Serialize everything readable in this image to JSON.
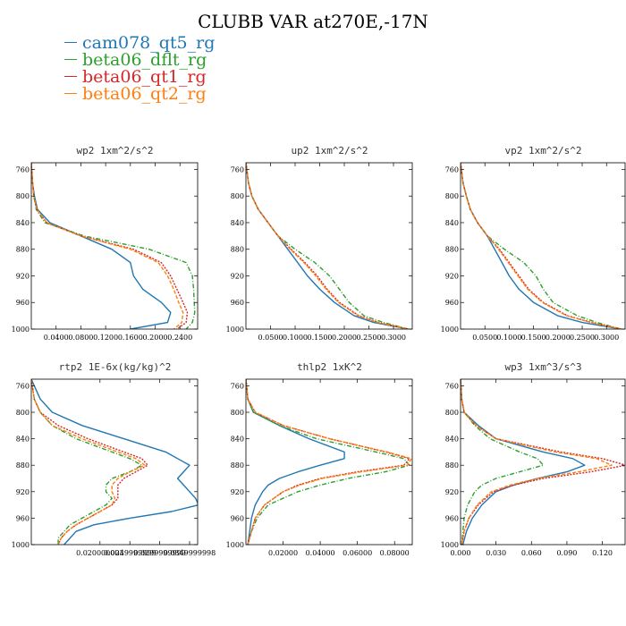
{
  "title": "CLUBB VAR at270E,-17N",
  "legend": [
    {
      "name": "cam078_qt5_rg",
      "color": "#1f77b4",
      "dash": ""
    },
    {
      "name": "beta06_dflt_rg",
      "color": "#2ca02c",
      "dash": "5,2,1,2"
    },
    {
      "name": "beta06_qt1_rg",
      "color": "#d62728",
      "dash": "2,1.5"
    },
    {
      "name": "beta06_qt2_rg",
      "color": "#ff7f0e",
      "dash": "4,2"
    }
  ],
  "chart_data": [
    {
      "type": "line",
      "title": "wp2  1xm^2/s^2",
      "ylim": [
        1000,
        750
      ],
      "yticks": [
        760,
        800,
        840,
        880,
        920,
        960,
        1000
      ],
      "xlim": [
        0,
        0.27
      ],
      "xticks": [
        0.04,
        0.08,
        0.12,
        0.16,
        0.2,
        0.24
      ],
      "xtick_labels": [
        "0.0400",
        "0.0800",
        "0.1200",
        "0.1600",
        "0.2000",
        "0.2400"
      ],
      "y": [
        750,
        780,
        800,
        820,
        840,
        860,
        880,
        900,
        920,
        940,
        960,
        975,
        990,
        1000
      ],
      "series": [
        {
          "name": "cam078_qt5_rg",
          "values": [
            0.0,
            0.002,
            0.005,
            0.01,
            0.03,
            0.08,
            0.13,
            0.16,
            0.165,
            0.18,
            0.21,
            0.225,
            0.22,
            0.16
          ]
        },
        {
          "name": "beta06_dflt_rg",
          "values": [
            0.0,
            0.002,
            0.004,
            0.008,
            0.022,
            0.085,
            0.19,
            0.25,
            0.26,
            0.262,
            0.263,
            0.264,
            0.26,
            0.25
          ]
        },
        {
          "name": "beta06_qt1_rg",
          "values": [
            0.0,
            0.002,
            0.004,
            0.009,
            0.025,
            0.08,
            0.165,
            0.21,
            0.225,
            0.235,
            0.245,
            0.252,
            0.25,
            0.235
          ]
        },
        {
          "name": "beta06_qt2_rg",
          "values": [
            0.0,
            0.002,
            0.004,
            0.009,
            0.025,
            0.08,
            0.16,
            0.205,
            0.22,
            0.23,
            0.238,
            0.245,
            0.243,
            0.23
          ]
        }
      ]
    },
    {
      "type": "line",
      "title": "up2  1xm^2/s^2",
      "ylim": [
        1000,
        750
      ],
      "yticks": [
        760,
        800,
        840,
        880,
        920,
        960,
        1000
      ],
      "xlim": [
        0,
        0.34
      ],
      "xticks": [
        0.05,
        0.1,
        0.15,
        0.2,
        0.25,
        0.3
      ],
      "xtick_labels": [
        "0.0500",
        "0.1000",
        "0.1500",
        "0.2000",
        "0.2500",
        "0.3000"
      ],
      "y": [
        750,
        780,
        800,
        820,
        840,
        860,
        880,
        900,
        920,
        940,
        960,
        980,
        990,
        1000
      ],
      "series": [
        {
          "name": "cam078_qt5_rg",
          "values": [
            0.0,
            0.005,
            0.012,
            0.025,
            0.045,
            0.065,
            0.085,
            0.105,
            0.125,
            0.15,
            0.18,
            0.22,
            0.26,
            0.33
          ]
        },
        {
          "name": "beta06_dflt_rg",
          "values": [
            0.0,
            0.005,
            0.012,
            0.025,
            0.045,
            0.065,
            0.1,
            0.14,
            0.17,
            0.19,
            0.21,
            0.24,
            0.28,
            0.33
          ]
        },
        {
          "name": "beta06_qt1_rg",
          "values": [
            0.0,
            0.005,
            0.012,
            0.025,
            0.045,
            0.065,
            0.092,
            0.12,
            0.145,
            0.165,
            0.19,
            0.23,
            0.27,
            0.33
          ]
        },
        {
          "name": "beta06_qt2_rg",
          "values": [
            0.0,
            0.005,
            0.012,
            0.025,
            0.045,
            0.065,
            0.09,
            0.118,
            0.142,
            0.163,
            0.188,
            0.228,
            0.268,
            0.33
          ]
        }
      ]
    },
    {
      "type": "line",
      "title": "vp2  1xm^2/s^2",
      "ylim": [
        1000,
        750
      ],
      "yticks": [
        760,
        800,
        840,
        880,
        920,
        960,
        1000
      ],
      "xlim": [
        0,
        0.34
      ],
      "xticks": [
        0.05,
        0.1,
        0.15,
        0.2,
        0.25,
        0.3
      ],
      "xtick_labels": [
        "0.0500",
        "0.1000",
        "0.1500",
        "0.2000",
        "0.2500",
        "0.3000"
      ],
      "y": [
        750,
        780,
        800,
        820,
        840,
        860,
        880,
        900,
        920,
        940,
        960,
        980,
        990,
        1000
      ],
      "series": [
        {
          "name": "cam078_qt5_rg",
          "values": [
            0.0,
            0.005,
            0.012,
            0.02,
            0.035,
            0.055,
            0.07,
            0.085,
            0.1,
            0.12,
            0.15,
            0.2,
            0.25,
            0.33
          ]
        },
        {
          "name": "beta06_dflt_rg",
          "values": [
            0.0,
            0.005,
            0.012,
            0.02,
            0.035,
            0.055,
            0.09,
            0.13,
            0.155,
            0.17,
            0.19,
            0.24,
            0.28,
            0.33
          ]
        },
        {
          "name": "beta06_qt1_rg",
          "values": [
            0.0,
            0.005,
            0.012,
            0.02,
            0.035,
            0.055,
            0.08,
            0.1,
            0.12,
            0.14,
            0.17,
            0.22,
            0.27,
            0.33
          ]
        },
        {
          "name": "beta06_qt2_rg",
          "values": [
            0.0,
            0.005,
            0.012,
            0.02,
            0.035,
            0.055,
            0.078,
            0.098,
            0.118,
            0.138,
            0.168,
            0.218,
            0.268,
            0.33
          ]
        }
      ]
    },
    {
      "type": "line",
      "title": "rtp2  1E-6x(kg/kg)^2",
      "ylim": [
        1000,
        750
      ],
      "yticks": [
        760,
        800,
        840,
        880,
        920,
        960,
        1000
      ],
      "xlim": [
        0.0085,
        0.0365
      ],
      "xticks": [
        0.02,
        0.025,
        0.03,
        0.035
      ],
      "xtick_labels": [
        "0.020000003",
        "0.0249999999",
        "0.0299999999",
        "0.0349999998"
      ],
      "y": [
        750,
        780,
        800,
        820,
        840,
        860,
        870,
        880,
        890,
        900,
        910,
        920,
        930,
        940,
        950,
        960,
        970,
        980,
        990,
        1000
      ],
      "series": [
        {
          "name": "cam078_qt5_rg",
          "values": [
            0.0085,
            0.01,
            0.012,
            0.017,
            0.024,
            0.031,
            0.033,
            0.035,
            0.034,
            0.033,
            0.034,
            0.035,
            0.036,
            0.0365,
            0.032,
            0.025,
            0.019,
            0.016,
            0.015,
            0.014
          ]
        },
        {
          "name": "beta06_dflt_rg",
          "values": [
            0.0085,
            0.009,
            0.01,
            0.012,
            0.016,
            0.022,
            0.025,
            0.027,
            0.025,
            0.022,
            0.021,
            0.021,
            0.022,
            0.021,
            0.019,
            0.017,
            0.015,
            0.014,
            0.013,
            0.013
          ]
        },
        {
          "name": "beta06_qt1_rg",
          "values": [
            0.0085,
            0.009,
            0.01,
            0.013,
            0.018,
            0.024,
            0.027,
            0.028,
            0.026,
            0.024,
            0.023,
            0.023,
            0.023,
            0.022,
            0.02,
            0.018,
            0.016,
            0.0145,
            0.0135,
            0.013
          ]
        },
        {
          "name": "beta06_qt2_rg",
          "values": [
            0.0085,
            0.009,
            0.01,
            0.012,
            0.017,
            0.023,
            0.026,
            0.0275,
            0.025,
            0.023,
            0.022,
            0.022,
            0.0225,
            0.022,
            0.02,
            0.018,
            0.016,
            0.0145,
            0.0135,
            0.013
          ]
        }
      ]
    },
    {
      "type": "line",
      "title": "thlp2  1xK^2",
      "ylim": [
        1000,
        750
      ],
      "yticks": [
        760,
        800,
        840,
        880,
        920,
        960,
        1000
      ],
      "xlim": [
        0,
        0.09
      ],
      "xticks": [
        0.02,
        0.04,
        0.06,
        0.08
      ],
      "xtick_labels": [
        "0.02000",
        "0.04000",
        "0.06000",
        "0.08000"
      ],
      "y": [
        750,
        780,
        800,
        820,
        840,
        860,
        870,
        880,
        890,
        900,
        910,
        920,
        940,
        960,
        980,
        1000
      ],
      "series": [
        {
          "name": "cam078_qt5_rg",
          "values": [
            0.0,
            0.001,
            0.004,
            0.018,
            0.034,
            0.053,
            0.053,
            0.04,
            0.028,
            0.018,
            0.012,
            0.009,
            0.005,
            0.003,
            0.002,
            0.001
          ]
        },
        {
          "name": "beta06_dflt_rg",
          "values": [
            0.0,
            0.001,
            0.004,
            0.018,
            0.038,
            0.07,
            0.085,
            0.088,
            0.075,
            0.055,
            0.04,
            0.028,
            0.012,
            0.006,
            0.003,
            0.001
          ]
        },
        {
          "name": "beta06_qt1_rg",
          "values": [
            0.0,
            0.001,
            0.005,
            0.02,
            0.045,
            0.075,
            0.088,
            0.085,
            0.06,
            0.04,
            0.028,
            0.02,
            0.01,
            0.005,
            0.003,
            0.001
          ]
        },
        {
          "name": "beta06_qt2_rg",
          "values": [
            0.0,
            0.001,
            0.005,
            0.02,
            0.045,
            0.076,
            0.089,
            0.087,
            0.062,
            0.041,
            0.029,
            0.02,
            0.01,
            0.005,
            0.003,
            0.001
          ]
        }
      ]
    },
    {
      "type": "line",
      "title": "wp3  1xm^3/s^3",
      "ylim": [
        1000,
        750
      ],
      "yticks": [
        760,
        800,
        840,
        880,
        920,
        960,
        1000
      ],
      "xlim": [
        0,
        0.14
      ],
      "xticks": [
        0.0,
        0.03,
        0.06,
        0.09,
        0.12
      ],
      "xtick_labels": [
        "0.000",
        "0.030",
        "0.060",
        "0.090",
        "0.120"
      ],
      "y": [
        750,
        780,
        800,
        820,
        840,
        860,
        870,
        880,
        890,
        900,
        910,
        920,
        940,
        960,
        980,
        1000
      ],
      "series": [
        {
          "name": "cam078_qt5_rg",
          "values": [
            0.0,
            0.001,
            0.003,
            0.015,
            0.03,
            0.07,
            0.095,
            0.105,
            0.09,
            0.065,
            0.045,
            0.03,
            0.018,
            0.01,
            0.005,
            0.002
          ]
        },
        {
          "name": "beta06_dflt_rg",
          "values": [
            0.0,
            0.001,
            0.003,
            0.012,
            0.025,
            0.05,
            0.065,
            0.07,
            0.05,
            0.03,
            0.018,
            0.012,
            0.006,
            0.003,
            0.002,
            0.001
          ]
        },
        {
          "name": "beta06_qt1_rg",
          "values": [
            0.0,
            0.001,
            0.003,
            0.013,
            0.03,
            0.085,
            0.12,
            0.14,
            0.11,
            0.07,
            0.045,
            0.028,
            0.015,
            0.007,
            0.003,
            0.001
          ]
        },
        {
          "name": "beta06_qt2_rg",
          "values": [
            0.0,
            0.001,
            0.003,
            0.013,
            0.03,
            0.08,
            0.115,
            0.128,
            0.1,
            0.065,
            0.042,
            0.026,
            0.014,
            0.007,
            0.003,
            0.001
          ]
        }
      ]
    }
  ]
}
